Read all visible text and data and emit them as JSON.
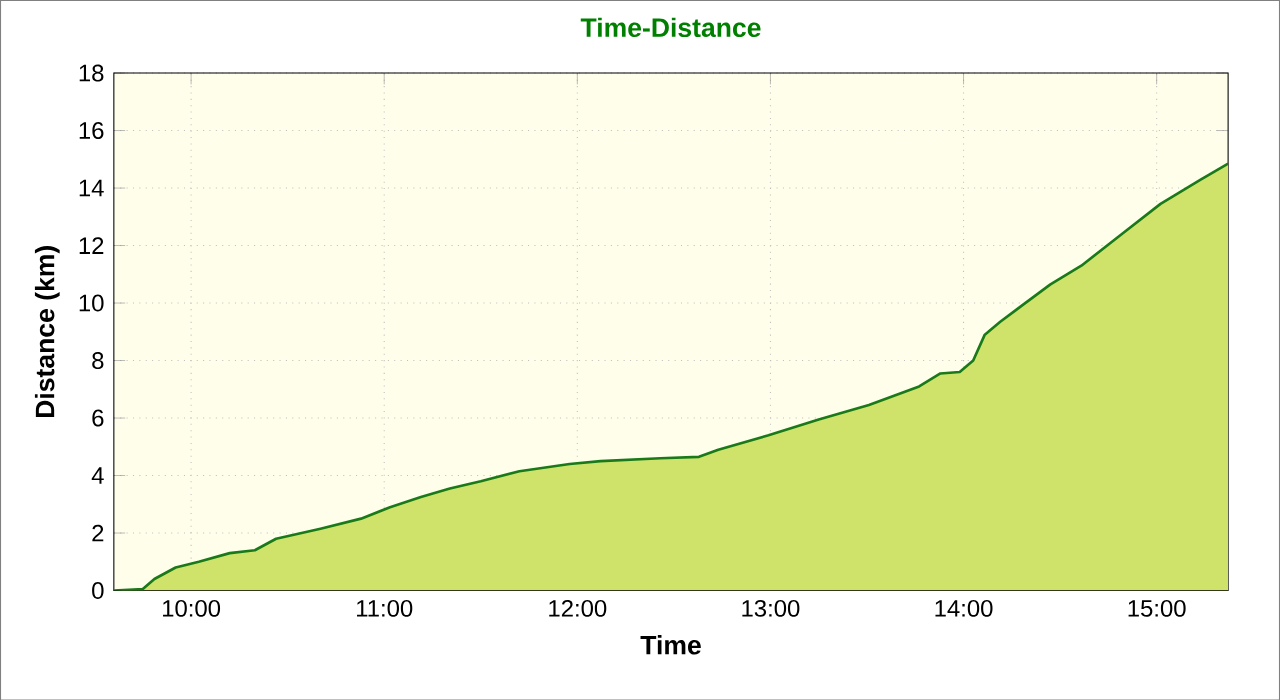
{
  "chart_data": {
    "type": "area",
    "title": "Time-Distance",
    "xlabel": "Time",
    "ylabel": "Distance (km)",
    "color": "#1a7a1a",
    "grid": true,
    "marker": "none",
    "line_style": "solid",
    "xlim": [
      9.6,
      15.37
    ],
    "xticks": [
      {
        "value": 10,
        "label": "10:00"
      },
      {
        "value": 11,
        "label": "11:00"
      },
      {
        "value": 12,
        "label": "12:00"
      },
      {
        "value": 13,
        "label": "13:00"
      },
      {
        "value": 14,
        "label": "14:00"
      },
      {
        "value": 15,
        "label": "15:00"
      }
    ],
    "ylim": [
      0,
      18
    ],
    "yticks": [
      0,
      2,
      4,
      6,
      8,
      10,
      12,
      14,
      16,
      18
    ],
    "x": [
      9.6,
      9.75,
      9.81,
      9.92,
      10.04,
      10.2,
      10.33,
      10.44,
      10.67,
      10.88,
      11.03,
      11.19,
      11.34,
      11.5,
      11.7,
      11.96,
      12.12,
      12.43,
      12.63,
      12.73,
      12.99,
      13.25,
      13.51,
      13.77,
      13.88,
      13.98,
      14.05,
      14.11,
      14.19,
      14.3,
      14.45,
      14.61,
      14.82,
      15.02,
      15.23,
      15.37
    ],
    "values": [
      0,
      0.05,
      0.4,
      0.8,
      1.0,
      1.3,
      1.4,
      1.8,
      2.15,
      2.5,
      2.9,
      3.25,
      3.55,
      3.8,
      4.15,
      4.4,
      4.5,
      4.6,
      4.65,
      4.9,
      5.4,
      5.95,
      6.45,
      7.1,
      7.55,
      7.6,
      8.0,
      8.9,
      9.35,
      9.9,
      10.65,
      11.3,
      12.4,
      13.45,
      14.3,
      14.85
    ]
  }
}
